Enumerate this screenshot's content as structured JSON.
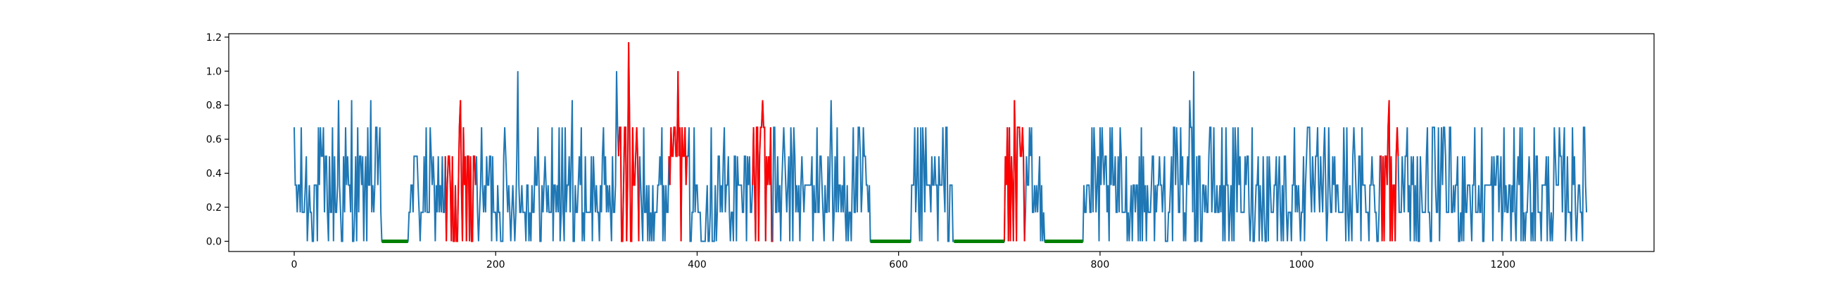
{
  "chart_data": {
    "type": "line",
    "title": "",
    "xlabel": "",
    "ylabel": "",
    "xlim": [
      -65,
      1350
    ],
    "ylim": [
      -0.06,
      1.22
    ],
    "x_ticks": [
      0,
      200,
      400,
      600,
      800,
      1000,
      1200
    ],
    "x_tick_labels": [
      "0",
      "200",
      "400",
      "600",
      "800",
      "1000",
      "1200"
    ],
    "y_ticks": [
      0.0,
      0.2,
      0.4,
      0.6,
      0.8,
      1.0,
      1.2
    ],
    "y_tick_labels": [
      "0.0",
      "0.2",
      "0.4",
      "0.6",
      "0.8",
      "1.0",
      "1.2"
    ],
    "grid": false,
    "legend": "none",
    "n_points": 1284,
    "colors": {
      "base": "#1f77b4",
      "highlight": "#ff0000",
      "flat": "#008000"
    },
    "series": [
      {
        "role": "base",
        "color": "#1f77b4",
        "x_range": [
          0,
          1283
        ],
        "value_levels": [
          0.0,
          0.17,
          0.33,
          0.5,
          0.67,
          0.83,
          1.0
        ],
        "spikes": [
          [
            44,
            0.83
          ],
          [
            57,
            0.83
          ],
          [
            76,
            0.83
          ],
          [
            222,
            1.0
          ],
          [
            276,
            0.83
          ],
          [
            320,
            1.0
          ],
          [
            533,
            0.83
          ],
          [
            611,
            0.83
          ],
          [
            893,
            1.0
          ],
          [
            889,
            0.83
          ]
        ]
      },
      {
        "role": "highlight",
        "color": "#ff0000",
        "segments": [
          {
            "x": [
              150,
              180
            ],
            "peak": 0.83
          },
          {
            "x": [
              322,
              342
            ],
            "peak": 1.17
          },
          {
            "x": [
              372,
              390
            ],
            "peak": 1.0
          },
          {
            "x": [
              455,
              475
            ],
            "peak": 0.83
          },
          {
            "x": [
              705,
              725
            ],
            "peak": 0.83
          },
          {
            "x": [
              1078,
              1096
            ],
            "peak": 0.83
          }
        ]
      },
      {
        "role": "flat",
        "color": "#008000",
        "segments": [
          {
            "x": [
              87,
              113
            ],
            "y": 0.0
          },
          {
            "x": [
              572,
              612
            ],
            "y": 0.0
          },
          {
            "x": [
              655,
              705
            ],
            "y": 0.0
          },
          {
            "x": [
              745,
              783
            ],
            "y": 0.0
          }
        ]
      }
    ]
  }
}
